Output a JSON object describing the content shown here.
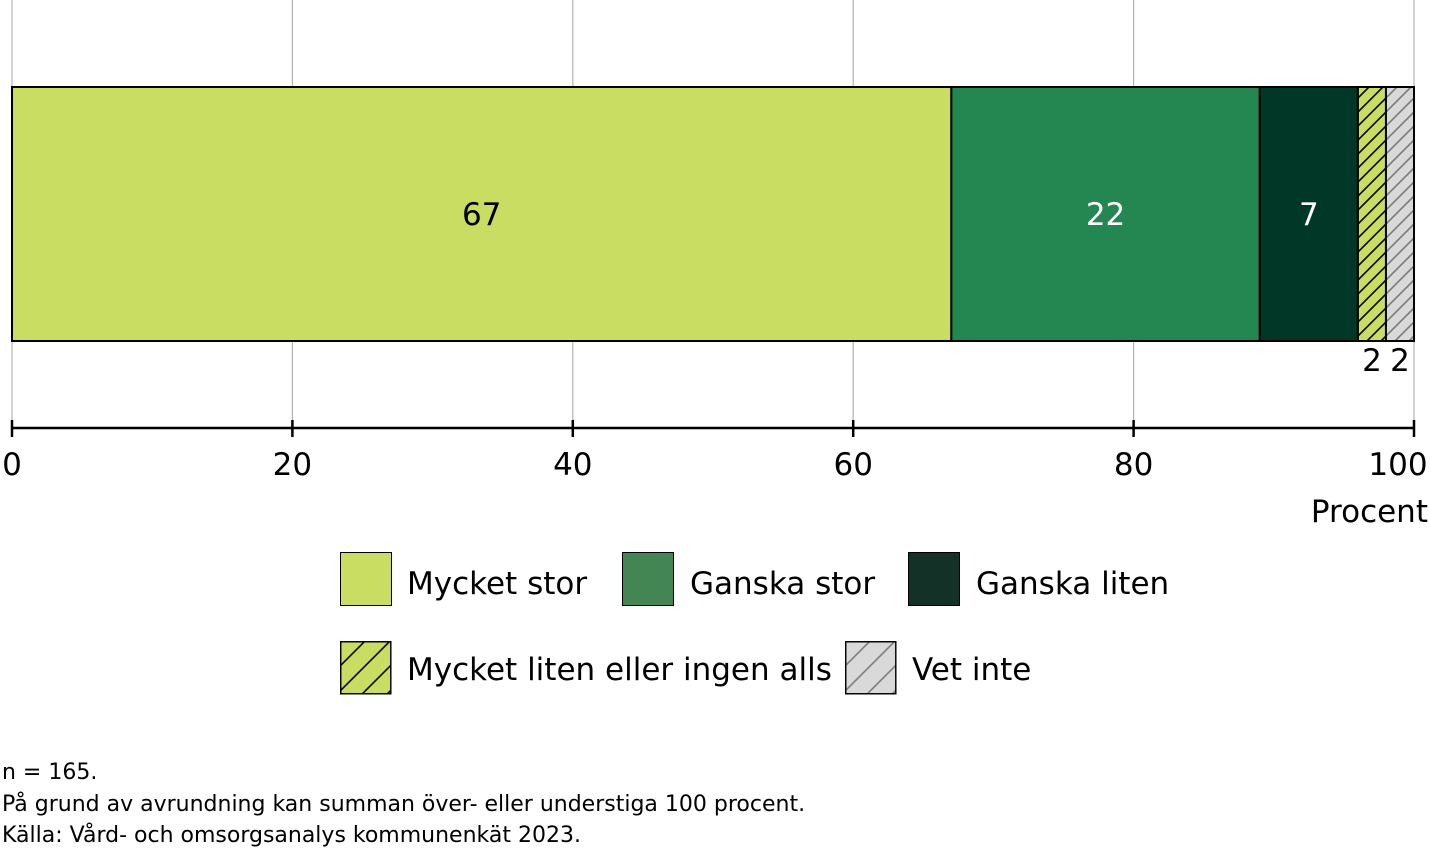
{
  "chart_data": {
    "type": "bar",
    "orientation": "horizontal",
    "stacked": true,
    "series": [
      {
        "name": "Mycket stor",
        "value": 67,
        "label": "67",
        "color": "#cadd63",
        "hatch": false,
        "label_color": "#000000"
      },
      {
        "name": "Ganska stor",
        "value": 22,
        "label": "22",
        "color": "#248751",
        "hatch": false,
        "label_color": "#ffffff"
      },
      {
        "name": "Ganska liten",
        "value": 7,
        "label": "7",
        "color": "#003726",
        "hatch": false,
        "label_color": "#ffffff"
      },
      {
        "name": "Mycket liten eller ingen alls",
        "value": 2,
        "label": "2",
        "color": "#cadd63",
        "hatch": true,
        "label_color": "#000000"
      },
      {
        "name": "Vet inte",
        "value": 2,
        "label": "2",
        "color": "#d9d9d9",
        "hatch": true,
        "label_color": "#000000"
      }
    ],
    "xlim": [
      0,
      100
    ],
    "xticks": [
      0,
      20,
      40,
      60,
      80,
      100
    ],
    "xticklabels": [
      "0",
      "20",
      "40",
      "60",
      "80",
      "100"
    ],
    "xlabel": "Procent",
    "grid": true,
    "legend_position": "bottom"
  },
  "legend": {
    "row1": [
      {
        "label": "Mycket stor",
        "color": "#cadd63",
        "hatch": false
      },
      {
        "label": "Ganska stor",
        "color": "#438553",
        "hatch": false
      },
      {
        "label": "Ganska liten",
        "color": "#133127",
        "hatch": false
      }
    ],
    "row2": [
      {
        "label": "Mycket liten eller ingen alls",
        "color": "#cadd63",
        "hatch": true
      },
      {
        "label": "Vet inte",
        "color": "#d9d9d9",
        "hatch": true
      }
    ]
  },
  "notes": {
    "n": "n = 165.",
    "rounding": "På grund av avrundning kan summan över- eller understiga 100 procent.",
    "source": "Källa: Vård- och omsorgsanalys kommunenkät 2023."
  }
}
